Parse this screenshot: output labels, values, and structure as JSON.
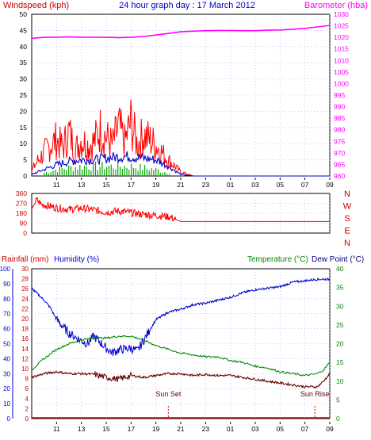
{
  "chart_data": [
    {
      "id": "wind",
      "type": "line",
      "title": "24 hour graph day : 17 March 2012",
      "ylabel_left": "Windspeed (kph)",
      "ylabel_right": "Barometer (hba)",
      "x_ticks": [
        "11",
        "13",
        "15",
        "17",
        "19",
        "21",
        "23",
        "01",
        "03",
        "05",
        "07",
        "09"
      ],
      "ylim_left": [
        0,
        50
      ],
      "y_ticks_left": [
        "0",
        "5",
        "10",
        "15",
        "20",
        "25",
        "30",
        "35",
        "40",
        "45",
        "50"
      ],
      "ylim_right": [
        960,
        1030
      ],
      "y_ticks_right": [
        "960",
        "965",
        "970",
        "975",
        "980",
        "985",
        "990",
        "995",
        "1000",
        "1005",
        "1010",
        "1015",
        "1020",
        "1025",
        "1030"
      ],
      "grid": true,
      "series": [
        {
          "key": "barometer",
          "axis": "right",
          "color": "#ff00ff",
          "x": [
            9,
            10,
            11,
            12,
            13,
            14,
            15,
            16,
            17,
            18,
            19,
            20,
            21,
            22,
            23,
            24,
            25,
            26,
            27,
            28,
            29,
            30,
            31,
            32,
            33
          ],
          "y": [
            1019.6,
            1020.0,
            1020.1,
            1020.2,
            1020.1,
            1020.1,
            1020.0,
            1019.9,
            1020.0,
            1020.4,
            1021.0,
            1021.7,
            1022.4,
            1022.7,
            1022.9,
            1023.0,
            1023.0,
            1022.9,
            1022.9,
            1023.1,
            1023.2,
            1023.5,
            1023.9,
            1024.5,
            1025.2
          ]
        },
        {
          "key": "wind_gust",
          "axis": "left",
          "color": "#ff0000",
          "x": [
            9,
            9.5,
            10,
            10.5,
            11,
            11.5,
            12,
            12.5,
            13,
            13.5,
            14,
            14.5,
            15,
            15.5,
            16,
            16.5,
            17,
            17.5,
            18,
            18.5,
            19,
            19.5,
            20,
            20.5,
            21,
            22,
            24,
            26,
            28,
            30,
            32,
            33
          ],
          "y": [
            2,
            6,
            9,
            12,
            14,
            11,
            17,
            10,
            14,
            12,
            13,
            18,
            15,
            12,
            19,
            13,
            21,
            12,
            16,
            14,
            12,
            9,
            6,
            4,
            1.5,
            0,
            0,
            0,
            0,
            0,
            0,
            0
          ]
        },
        {
          "key": "wind_avg",
          "axis": "left",
          "color": "#0000cc",
          "x": [
            9,
            10,
            11,
            12,
            13,
            14,
            15,
            16,
            17,
            18,
            19,
            20,
            21,
            22,
            24,
            26,
            28,
            30,
            32,
            33
          ],
          "y": [
            0.5,
            2,
            3.5,
            4.5,
            5,
            5,
            5.5,
            6,
            6,
            5.5,
            5,
            3,
            0.5,
            0,
            0,
            0,
            0,
            0,
            0,
            0
          ]
        },
        {
          "key": "wind_bars",
          "axis": "left",
          "color": "#00aa00",
          "x": [
            10,
            11,
            12,
            13,
            14,
            15,
            16,
            17,
            18,
            19,
            20
          ],
          "y": [
            1,
            2,
            2.5,
            3,
            3,
            3,
            3,
            3,
            2.5,
            2,
            1
          ]
        }
      ]
    },
    {
      "id": "direction",
      "type": "line",
      "ylim": [
        0,
        360
      ],
      "y_ticks": [
        "0",
        "90",
        "180",
        "270",
        "360"
      ],
      "compass": [
        "N",
        "W",
        "S",
        "E",
        "N"
      ],
      "x_ticks": [
        "11",
        "13",
        "15",
        "17",
        "19",
        "21",
        "23",
        "01",
        "03",
        "05",
        "07",
        "09"
      ],
      "series": [
        {
          "key": "wind_direction",
          "color": "#ff0000",
          "x": [
            9,
            9.4,
            9.8,
            10.2,
            11,
            12,
            13,
            14,
            15,
            16,
            17,
            18,
            19,
            20,
            20.5,
            21,
            22,
            24,
            26,
            28,
            30,
            32,
            33
          ],
          "y": [
            220,
            300,
            260,
            250,
            230,
            215,
            225,
            210,
            190,
            200,
            185,
            170,
            160,
            150,
            130,
            105,
            105,
            105,
            105,
            105,
            105,
            105,
            105
          ]
        }
      ]
    },
    {
      "id": "temperature",
      "type": "line",
      "ylabel_left": "Rainfall (mm)",
      "ylabel_left2": "Humidity (%)",
      "ylabel_right": "Temperature (°C)",
      "ylabel_right2": "Dew Point (°C)",
      "ylim_humidity": [
        0,
        100
      ],
      "y_ticks_humidity": [
        "0",
        "10",
        "20",
        "30",
        "40",
        "50",
        "60",
        "70",
        "80",
        "90",
        "100"
      ],
      "ylim_rain": [
        0,
        30
      ],
      "y_ticks_rain": [
        "0",
        "2",
        "4",
        "6",
        "8",
        "10",
        "12",
        "14",
        "16",
        "18",
        "20",
        "22",
        "24",
        "26",
        "28",
        "30"
      ],
      "ylim_temp": [
        0,
        40
      ],
      "y_ticks_temp": [
        "0",
        "5",
        "10",
        "15",
        "20",
        "25",
        "30",
        "35",
        "40"
      ],
      "x_ticks": [
        "11",
        "13",
        "15",
        "17",
        "19",
        "21",
        "23",
        "01",
        "03",
        "05",
        "07",
        "09"
      ],
      "annotations": [
        {
          "label": "Sun Set",
          "x": 20
        },
        {
          "label": "Sun Rise",
          "x": 31.8
        }
      ],
      "series": [
        {
          "key": "humidity",
          "axis": "humidity",
          "color": "#0000cc",
          "x": [
            9,
            9.5,
            10,
            10.5,
            11,
            12,
            13,
            13.5,
            14,
            14.5,
            15,
            15.5,
            16,
            17,
            17.5,
            18,
            18.5,
            19,
            20,
            21,
            22,
            23,
            24,
            25,
            26,
            27,
            28,
            29,
            30,
            31,
            32,
            33
          ],
          "y": [
            87,
            83,
            79,
            74,
            66,
            57,
            52,
            50,
            55,
            51,
            47,
            44,
            46,
            47,
            45,
            52,
            59,
            66,
            71,
            73,
            76,
            77,
            79,
            81,
            84,
            86,
            87,
            88,
            91,
            92,
            93,
            93
          ]
        },
        {
          "key": "temperature",
          "axis": "temp",
          "color": "#008800",
          "x": [
            9,
            10,
            11,
            12,
            13,
            14,
            15,
            16,
            17,
            18,
            19,
            20,
            21,
            22,
            23,
            24,
            25,
            26,
            27,
            28,
            29,
            30,
            31,
            32,
            32.5,
            33
          ],
          "y": [
            13,
            16,
            18.5,
            20,
            21,
            21.5,
            21.5,
            22,
            22,
            21,
            19.5,
            18.5,
            17.5,
            17,
            16.5,
            16.5,
            15.5,
            15,
            14,
            13.5,
            12.5,
            12,
            11.5,
            12,
            13,
            15
          ]
        },
        {
          "key": "dew_point",
          "axis": "temp",
          "color": "#660000",
          "x": [
            9,
            10,
            11,
            12,
            13,
            14,
            15,
            16,
            17,
            18,
            19,
            20,
            21,
            22,
            23,
            24,
            25,
            26,
            27,
            28,
            29,
            30,
            31,
            32,
            32.5,
            33
          ],
          "y": [
            11,
            12,
            12.5,
            12,
            12,
            11.8,
            11,
            10.5,
            11.5,
            11,
            11.5,
            12,
            12,
            11.5,
            11.8,
            11.5,
            11.5,
            11,
            10.5,
            10,
            9.5,
            9,
            8.5,
            8.5,
            10,
            12
          ]
        },
        {
          "key": "rainfall",
          "axis": "rain",
          "color": "#cc0000",
          "x": [
            9,
            33
          ],
          "y": [
            0,
            0
          ]
        }
      ]
    }
  ]
}
